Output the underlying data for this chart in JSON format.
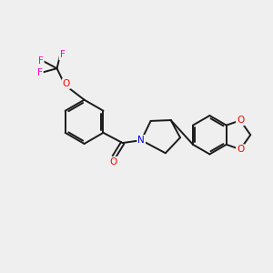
{
  "background_color": "#efefef",
  "bond_color": "#1a1a1a",
  "atom_colors": {
    "O": "#ff0000",
    "N": "#0000ee",
    "F": "#ff00cc",
    "C": "#1a1a1a"
  },
  "lw": 1.4,
  "fs": 7.5,
  "figsize": [
    3.0,
    3.0
  ],
  "dpi": 100
}
